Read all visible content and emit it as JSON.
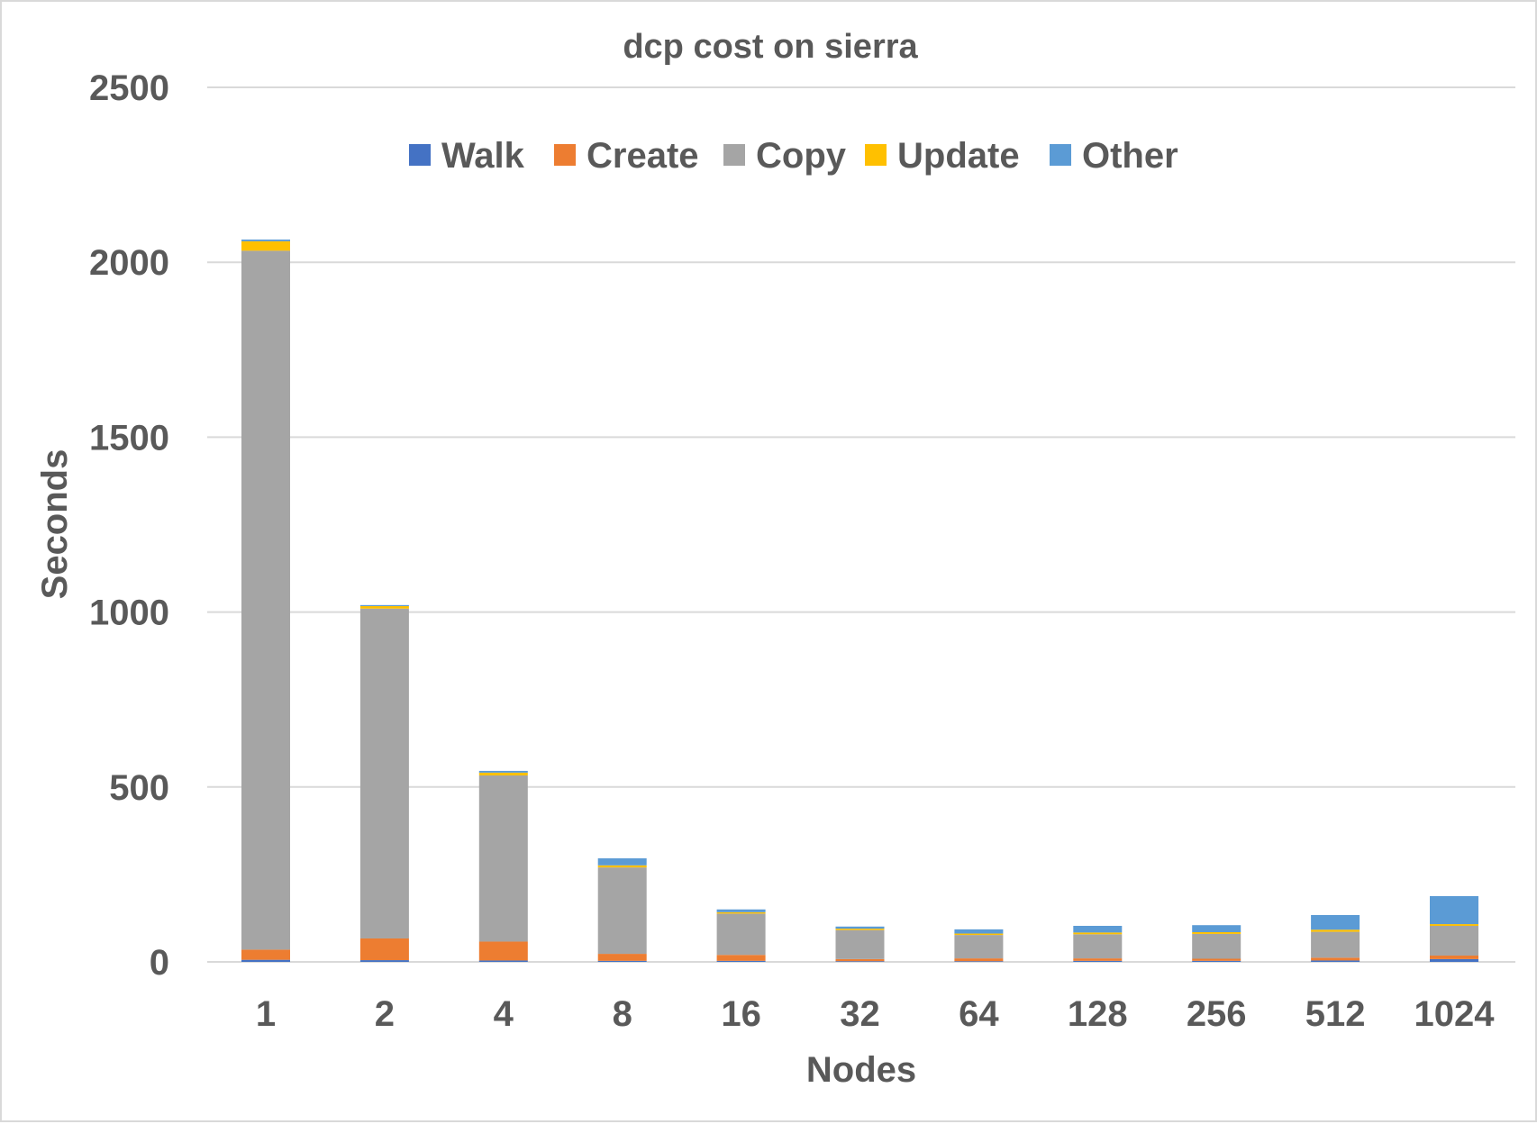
{
  "chart_data": {
    "type": "bar",
    "stacked": true,
    "title": "dcp cost on sierra",
    "xlabel": "Nodes",
    "ylabel": "Seconds",
    "ylim": [
      0,
      2500
    ],
    "yticks": [
      0,
      500,
      1000,
      1500,
      2000,
      2500
    ],
    "grid": true,
    "legend": "top-center",
    "categories": [
      "1",
      "2",
      "4",
      "8",
      "16",
      "32",
      "64",
      "128",
      "256",
      "512",
      "1024"
    ],
    "series": [
      {
        "name": "Walk",
        "color": "#4472C4",
        "values": [
          6,
          5,
          4,
          3,
          3,
          2,
          2,
          3,
          3,
          4,
          8
        ]
      },
      {
        "name": "Create",
        "color": "#ED7D31",
        "values": [
          29,
          62,
          54,
          20,
          17,
          6,
          8,
          7,
          6,
          8,
          10
        ]
      },
      {
        "name": "Copy",
        "color": "#A5A5A5",
        "values": [
          1998,
          943,
          475,
          247,
          118,
          83,
          67,
          69,
          71,
          74,
          85
        ]
      },
      {
        "name": "Update",
        "color": "#FFC000",
        "values": [
          27,
          7,
          8,
          6,
          4,
          4,
          4,
          5,
          5,
          6,
          5
        ]
      },
      {
        "name": "Other",
        "color": "#5B9BD5",
        "values": [
          5,
          3,
          5,
          20,
          8,
          6,
          12,
          19,
          20,
          42,
          80
        ]
      }
    ]
  }
}
